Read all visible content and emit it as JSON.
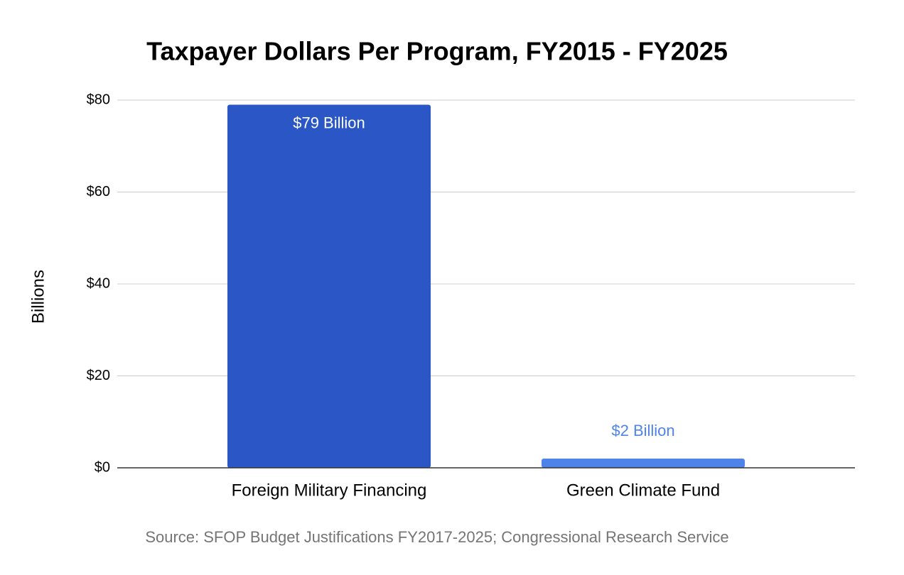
{
  "chart_data": {
    "type": "bar",
    "title": "Taxpayer Dollars Per Program, FY2015 - FY2025",
    "y_label": "Billions",
    "source": "Source: SFOP Budget Justifications FY2017-2025; Congressional Research Service",
    "categories": [
      "Foreign Military Financing",
      "Green Climate Fund"
    ],
    "values": [
      79,
      2
    ],
    "value_labels": [
      "$79 Billion",
      "$2 Billion"
    ],
    "colors": [
      "#2a56c6",
      "#4e84ea"
    ],
    "ylim": [
      0,
      80
    ],
    "yticks": [
      {
        "value": 0,
        "label": "$0"
      },
      {
        "value": 20,
        "label": "$20"
      },
      {
        "value": 40,
        "label": "$40"
      },
      {
        "value": 60,
        "label": "$60"
      },
      {
        "value": 80,
        "label": "$80"
      }
    ],
    "grid": true
  }
}
